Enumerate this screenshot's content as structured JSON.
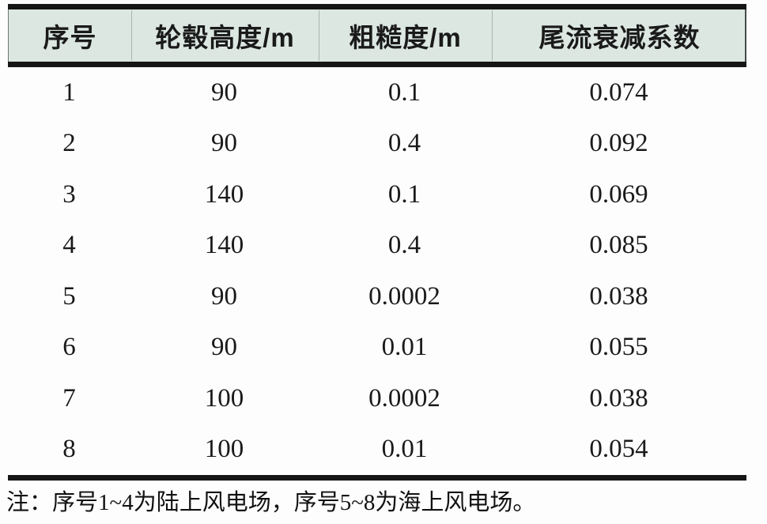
{
  "table": {
    "columns": [
      "序号",
      "轮毂高度/m",
      "粗糙度/m",
      "尾流衰减系数"
    ],
    "rows": [
      [
        "1",
        "90",
        "0.1",
        "0.074"
      ],
      [
        "2",
        "90",
        "0.4",
        "0.092"
      ],
      [
        "3",
        "140",
        "0.1",
        "0.069"
      ],
      [
        "4",
        "140",
        "0.4",
        "0.085"
      ],
      [
        "5",
        "90",
        "0.0002",
        "0.038"
      ],
      [
        "6",
        "90",
        "0.01",
        "0.055"
      ],
      [
        "7",
        "100",
        "0.0002",
        "0.038"
      ],
      [
        "8",
        "100",
        "0.01",
        "0.054"
      ]
    ],
    "note": "注：序号1~4为陆上风电场，序号5~8为海上风电场。"
  },
  "chart_data": {
    "type": "table",
    "columns": [
      "序号",
      "轮毂高度/m",
      "粗糙度/m",
      "尾流衰减系数"
    ],
    "rows": [
      [
        1,
        90,
        0.1,
        0.074
      ],
      [
        2,
        90,
        0.4,
        0.092
      ],
      [
        3,
        140,
        0.1,
        0.069
      ],
      [
        4,
        140,
        0.4,
        0.085
      ],
      [
        5,
        90,
        0.0002,
        0.038
      ],
      [
        6,
        90,
        0.01,
        0.055
      ],
      [
        7,
        100,
        0.0002,
        0.038
      ],
      [
        8,
        100,
        0.01,
        0.054
      ]
    ],
    "note": "注：序号1~4为陆上风电场，序号5~8为海上风电场。"
  },
  "colors": {
    "header_bg": "#dce7e2",
    "rule": "#161616",
    "text": "#1a1a1a"
  }
}
